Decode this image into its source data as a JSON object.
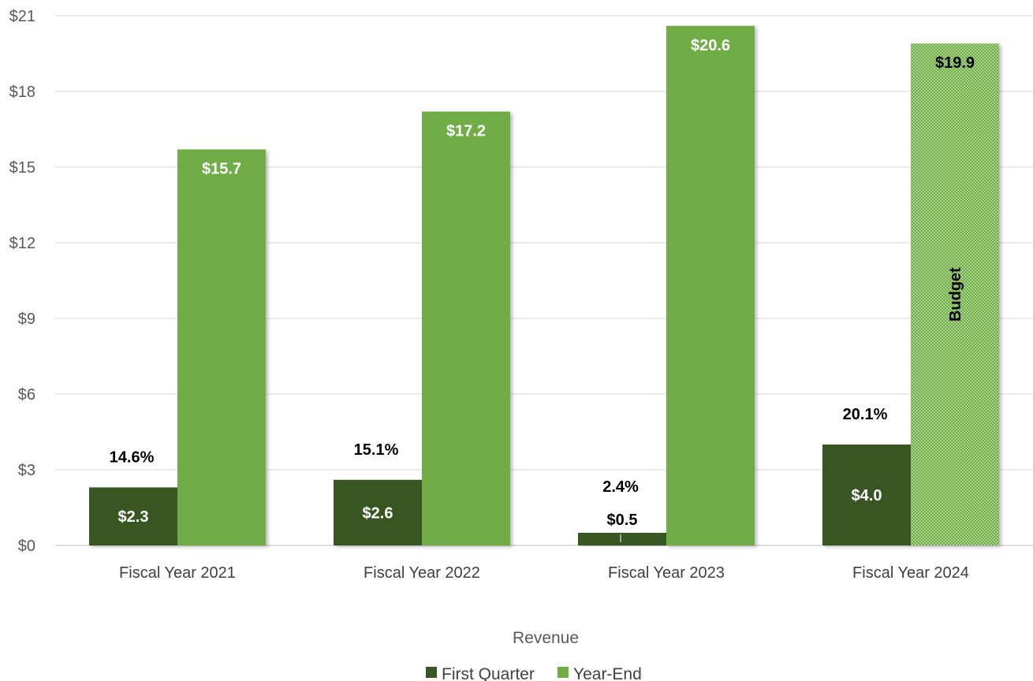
{
  "chart_data": {
    "type": "bar",
    "categories": [
      "Fiscal Year 2021",
      "Fiscal Year 2022",
      "Fiscal Year 2023",
      "Fiscal Year 2024"
    ],
    "series": [
      {
        "name": "First Quarter",
        "values": [
          2.3,
          2.6,
          0.5,
          4.0
        ],
        "labels": [
          "$2.3",
          "$2.6",
          "$0.5",
          "$4.0"
        ],
        "percent_labels": [
          "14.6%",
          "15.1%",
          "2.4%",
          "20.1%"
        ],
        "color": "#375623"
      },
      {
        "name": "Year-End",
        "values": [
          15.7,
          17.2,
          20.6,
          19.9
        ],
        "labels": [
          "$15.7",
          "$17.2",
          "$20.6",
          "$19.9"
        ],
        "color": "#70AD47",
        "budget_index": 3
      }
    ],
    "budget_label": "Budget",
    "xlabel": "Revenue",
    "ylabel": "",
    "ylim": [
      0,
      21
    ],
    "yticks": [
      0,
      3,
      6,
      9,
      12,
      15,
      18,
      21
    ],
    "ytick_labels": [
      "$0",
      "$3",
      "$6",
      "$9",
      "$12",
      "$15",
      "$18",
      "$21"
    ],
    "grid": true,
    "legend_position": "bottom"
  }
}
